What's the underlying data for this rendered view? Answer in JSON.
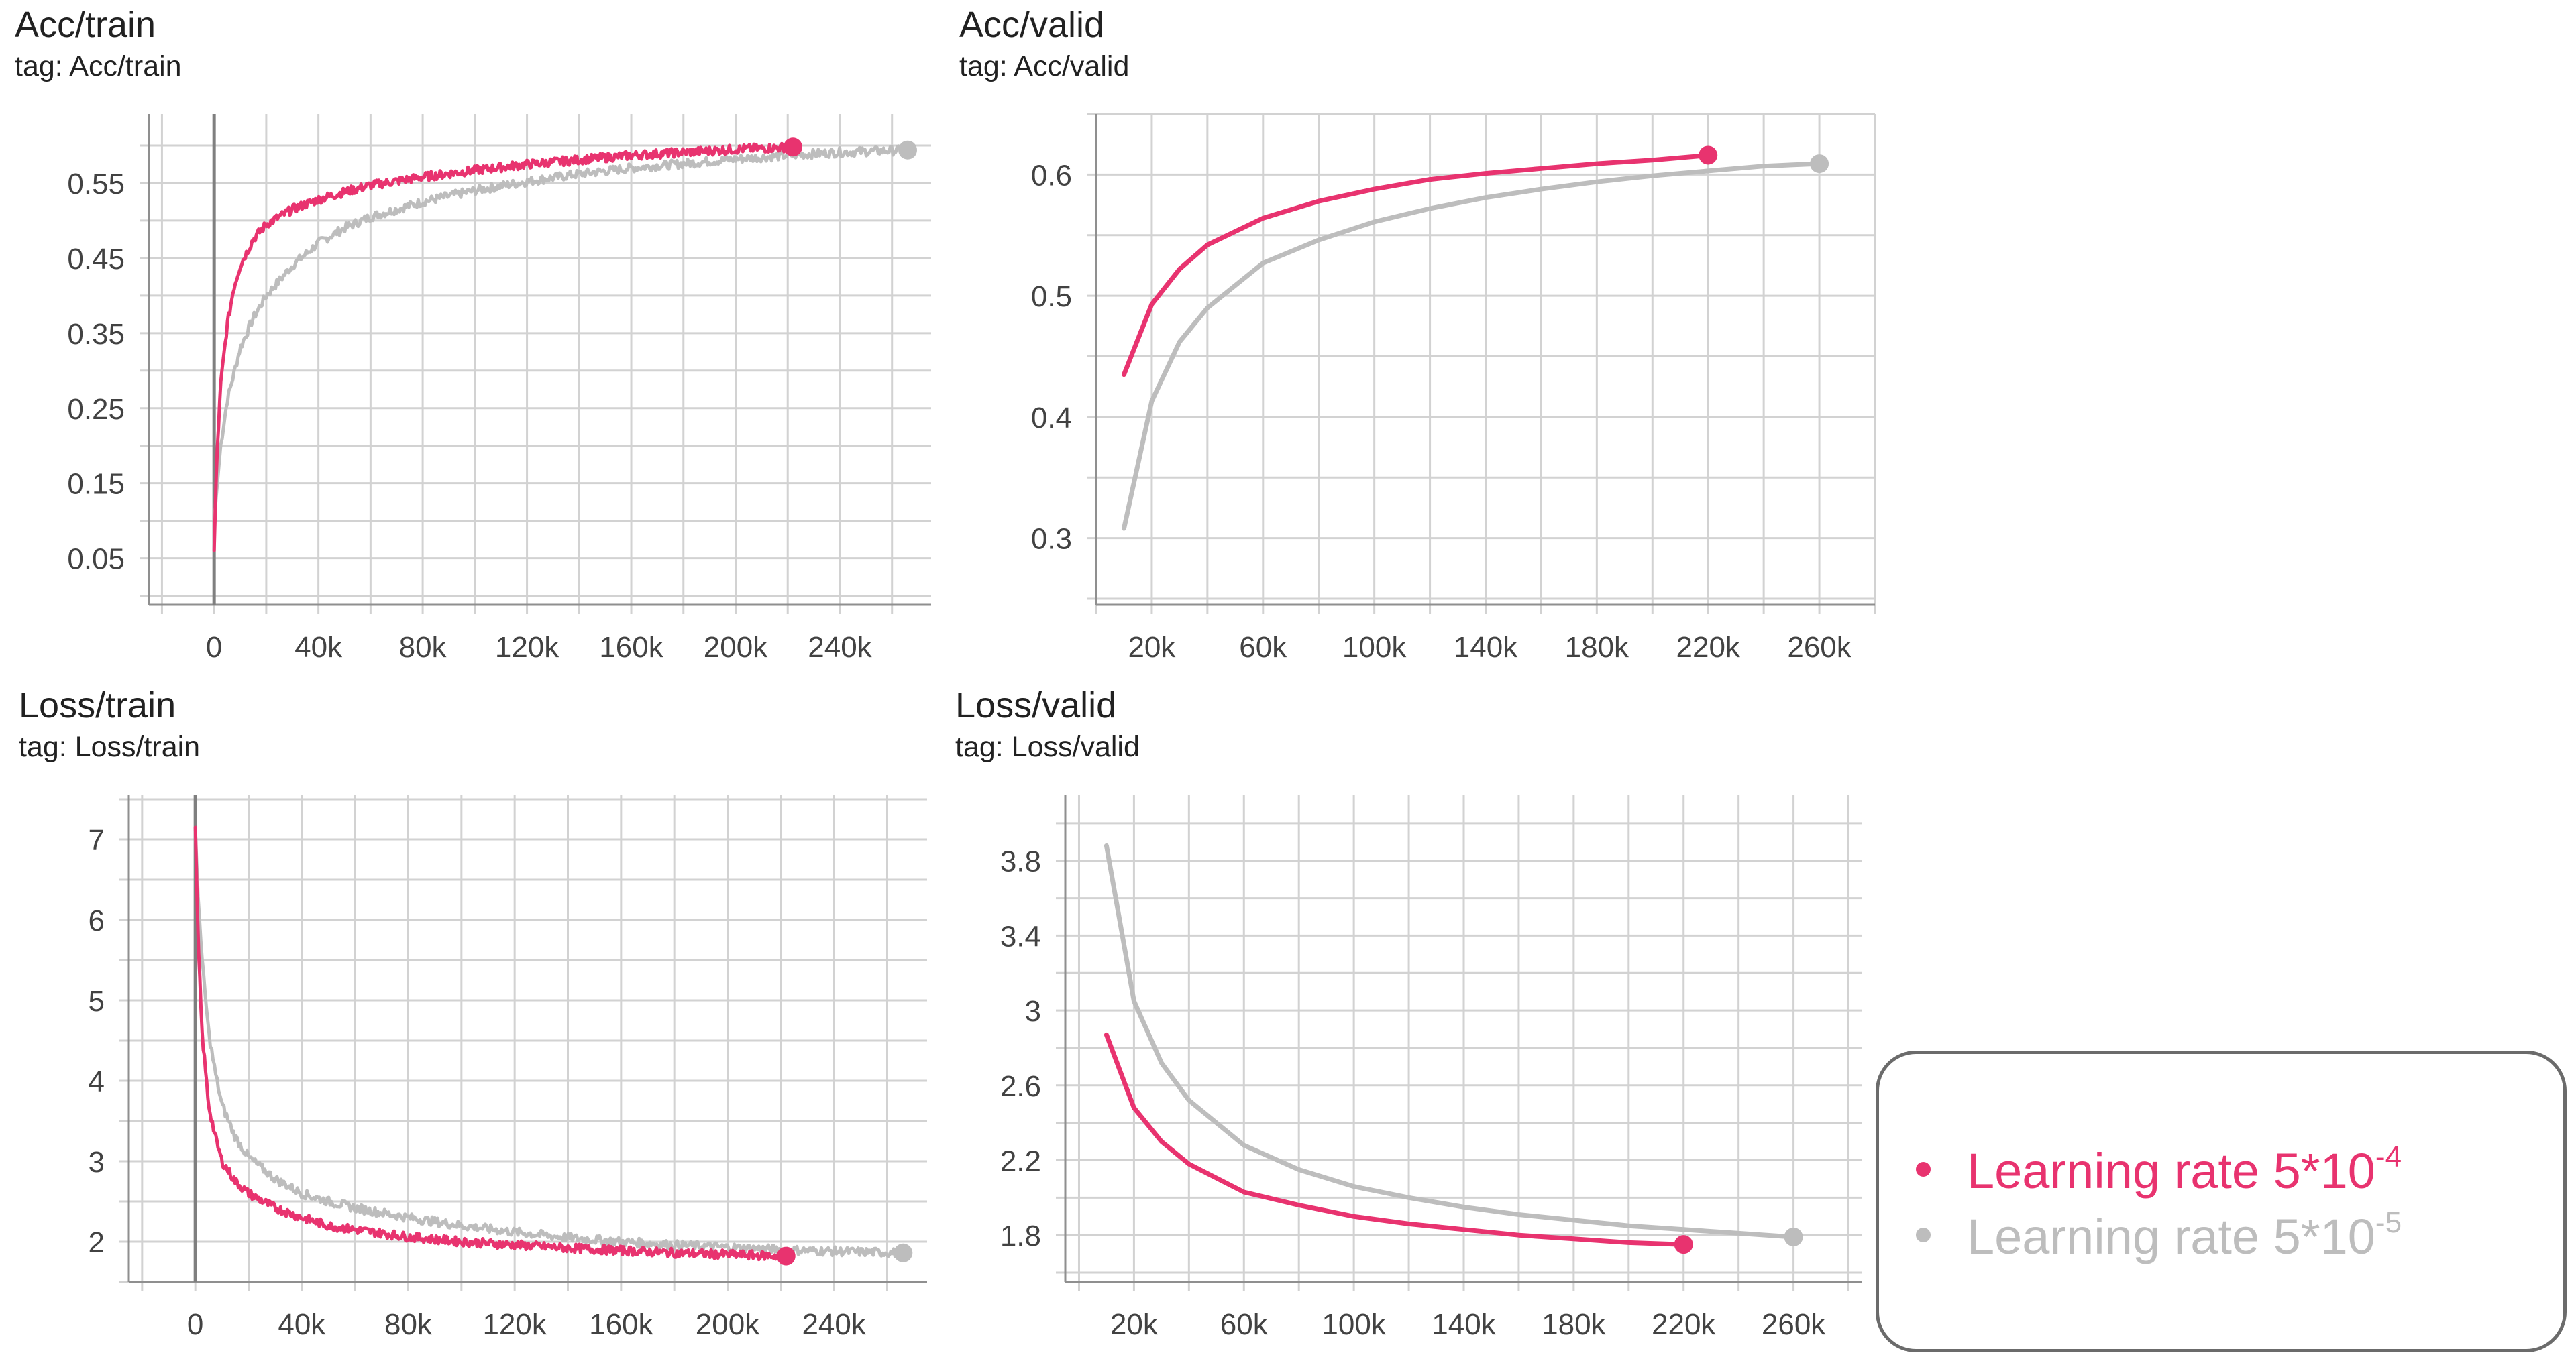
{
  "colors": {
    "series_a": "#E8336F",
    "series_b": "#BDBDBD",
    "grid": "#d2d2d2",
    "axis": "#8f8f8f",
    "zero_axis": "#7f7f7f",
    "tick": "#424242"
  },
  "legend": {
    "items": [
      {
        "label": "Learning rate 5*10",
        "exponent": "-4",
        "color": "#E8336F"
      },
      {
        "label": "Learning rate 5*10",
        "exponent": "-5",
        "color": "#BDBDBD"
      }
    ]
  },
  "chart_data": [
    {
      "type": "line",
      "title": "Acc/train",
      "subtitle": "tag: Acc/train",
      "xlim": [
        -25000,
        275000
      ],
      "ylim": [
        -0.012,
        0.642
      ],
      "xticks": [
        0,
        40000,
        80000,
        120000,
        160000,
        200000,
        240000
      ],
      "xtick_labels": [
        "0",
        "40k",
        "80k",
        "120k",
        "160k",
        "200k",
        "240k"
      ],
      "yticks": [
        0.05,
        0.15,
        0.25,
        0.35,
        0.45,
        0.55
      ],
      "ytick_labels": [
        "0.05",
        "0.15",
        "0.25",
        "0.35",
        "0.45",
        "0.55"
      ],
      "y_minor_step": 0.05,
      "x_minor_step": 20000,
      "zero_axis": 0,
      "noisy": true,
      "series": [
        {
          "color": "#E8336F",
          "end_marker": true,
          "x": [
            0,
            1000,
            2500,
            5000,
            7500,
            10000,
            15000,
            20000,
            30000,
            40000,
            50000,
            60000,
            80000,
            100000,
            120000,
            140000,
            160000,
            180000,
            200000,
            222000
          ],
          "y": [
            0.06,
            0.18,
            0.28,
            0.36,
            0.41,
            0.44,
            0.475,
            0.495,
            0.515,
            0.528,
            0.538,
            0.547,
            0.558,
            0.567,
            0.575,
            0.581,
            0.587,
            0.591,
            0.595,
            0.598
          ]
        },
        {
          "color": "#BDBDBD",
          "end_marker": true,
          "x": [
            0,
            2500,
            5000,
            10000,
            15000,
            20000,
            30000,
            40000,
            50000,
            60000,
            80000,
            100000,
            120000,
            140000,
            160000,
            180000,
            200000,
            220000,
            240000,
            266000
          ],
          "y": [
            0.1,
            0.2,
            0.26,
            0.33,
            0.37,
            0.4,
            0.44,
            0.47,
            0.49,
            0.505,
            0.525,
            0.54,
            0.552,
            0.562,
            0.57,
            0.576,
            0.582,
            0.587,
            0.591,
            0.594
          ]
        }
      ]
    },
    {
      "type": "line",
      "title": "Acc/valid",
      "subtitle": "tag: Acc/valid",
      "xlim": [
        0,
        280000
      ],
      "ylim": [
        0.245,
        0.65
      ],
      "xticks": [
        20000,
        60000,
        100000,
        140000,
        180000,
        220000,
        260000
      ],
      "xtick_labels": [
        "20k",
        "60k",
        "100k",
        "140k",
        "180k",
        "220k",
        "260k"
      ],
      "yticks": [
        0.3,
        0.4,
        0.5,
        0.6
      ],
      "ytick_labels": [
        "0.3",
        "0.4",
        "0.5",
        "0.6"
      ],
      "y_minor_step": 0.05,
      "x_minor_step": 20000,
      "zero_axis": null,
      "noisy": false,
      "series": [
        {
          "color": "#E8336F",
          "end_marker": true,
          "x": [
            10000,
            20000,
            30000,
            40000,
            60000,
            80000,
            100000,
            120000,
            140000,
            160000,
            180000,
            200000,
            220000
          ],
          "y": [
            0.435,
            0.493,
            0.522,
            0.542,
            0.564,
            0.578,
            0.588,
            0.596,
            0.601,
            0.605,
            0.609,
            0.612,
            0.616
          ]
        },
        {
          "color": "#BDBDBD",
          "end_marker": true,
          "x": [
            10000,
            20000,
            30000,
            40000,
            60000,
            80000,
            100000,
            120000,
            140000,
            160000,
            180000,
            200000,
            220000,
            240000,
            260000
          ],
          "y": [
            0.308,
            0.413,
            0.462,
            0.49,
            0.527,
            0.546,
            0.561,
            0.572,
            0.581,
            0.588,
            0.594,
            0.599,
            0.603,
            0.607,
            0.609
          ]
        }
      ]
    },
    {
      "type": "line",
      "title": "Loss/train",
      "subtitle": "tag: Loss/train",
      "xlim": [
        -25000,
        275000
      ],
      "ylim": [
        1.5,
        7.55
      ],
      "xticks": [
        0,
        40000,
        80000,
        120000,
        160000,
        200000,
        240000
      ],
      "xtick_labels": [
        "0",
        "40k",
        "80k",
        "120k",
        "160k",
        "200k",
        "240k"
      ],
      "yticks": [
        2,
        3,
        4,
        5,
        6,
        7
      ],
      "ytick_labels": [
        "2",
        "3",
        "4",
        "5",
        "6",
        "7"
      ],
      "y_minor_step": 0.5,
      "x_minor_step": 20000,
      "zero_axis": 0,
      "noisy": true,
      "series": [
        {
          "color": "#E8336F",
          "end_marker": true,
          "x": [
            0,
            1000,
            2500,
            5000,
            7500,
            10000,
            15000,
            20000,
            30000,
            40000,
            50000,
            60000,
            80000,
            100000,
            120000,
            140000,
            160000,
            180000,
            200000,
            222000
          ],
          "y": [
            7.15,
            5.8,
            4.6,
            3.7,
            3.3,
            3.0,
            2.75,
            2.6,
            2.42,
            2.3,
            2.2,
            2.15,
            2.06,
            2.0,
            1.96,
            1.92,
            1.89,
            1.86,
            1.84,
            1.82
          ]
        },
        {
          "color": "#BDBDBD",
          "end_marker": true,
          "x": [
            0,
            1000,
            2500,
            5000,
            7500,
            10000,
            15000,
            20000,
            30000,
            40000,
            50000,
            60000,
            80000,
            100000,
            120000,
            140000,
            160000,
            180000,
            200000,
            220000,
            240000,
            266000
          ],
          "y": [
            7.1,
            6.3,
            5.5,
            4.6,
            4.1,
            3.7,
            3.3,
            3.05,
            2.78,
            2.6,
            2.5,
            2.42,
            2.3,
            2.2,
            2.12,
            2.05,
            2.0,
            1.96,
            1.93,
            1.9,
            1.88,
            1.86
          ]
        }
      ]
    },
    {
      "type": "line",
      "title": "Loss/valid",
      "subtitle": "tag: Loss/valid",
      "xlim": [
        -5000,
        285000
      ],
      "ylim": [
        1.55,
        4.15
      ],
      "xticks": [
        20000,
        60000,
        100000,
        140000,
        180000,
        220000,
        260000
      ],
      "xtick_labels": [
        "20k",
        "60k",
        "100k",
        "140k",
        "180k",
        "220k",
        "260k"
      ],
      "yticks": [
        1.8,
        2.2,
        2.6,
        3,
        3.4,
        3.8
      ],
      "ytick_labels": [
        "1.8",
        "2.2",
        "2.6",
        "3",
        "3.4",
        "3.8"
      ],
      "y_minor_step": 0.2,
      "x_minor_step": 20000,
      "zero_axis": null,
      "noisy": false,
      "series": [
        {
          "color": "#E8336F",
          "end_marker": true,
          "x": [
            10000,
            20000,
            30000,
            40000,
            60000,
            80000,
            100000,
            120000,
            140000,
            160000,
            180000,
            200000,
            220000
          ],
          "y": [
            2.87,
            2.48,
            2.3,
            2.18,
            2.03,
            1.96,
            1.9,
            1.86,
            1.83,
            1.8,
            1.78,
            1.76,
            1.75
          ]
        },
        {
          "color": "#BDBDBD",
          "end_marker": true,
          "x": [
            10000,
            20000,
            30000,
            40000,
            60000,
            80000,
            100000,
            120000,
            140000,
            160000,
            180000,
            200000,
            220000,
            240000,
            260000
          ],
          "y": [
            3.88,
            3.05,
            2.72,
            2.52,
            2.28,
            2.15,
            2.06,
            2.0,
            1.95,
            1.91,
            1.88,
            1.85,
            1.83,
            1.81,
            1.79
          ]
        }
      ]
    }
  ]
}
